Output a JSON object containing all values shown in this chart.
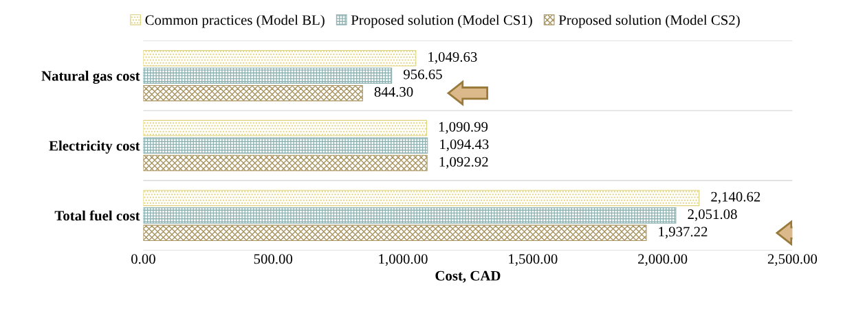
{
  "chart_data": {
    "type": "bar",
    "orientation": "horizontal",
    "xlabel": "Cost, CAD",
    "categories": [
      "Natural gas cost",
      "Electricity cost",
      "Total fuel cost"
    ],
    "series": [
      {
        "name": "Common practices (Model BL)",
        "color": "#e0d27a",
        "values": [
          1049.63,
          1090.99,
          2140.62
        ],
        "value_labels": [
          "1,049.63",
          "1,090.99",
          "2,140.62"
        ]
      },
      {
        "name": "Proposed solution (Model CS1)",
        "color": "#8fb3b3",
        "values": [
          956.65,
          1094.43,
          2051.08
        ],
        "value_labels": [
          "956.65",
          "1,094.43",
          "2,051.08"
        ]
      },
      {
        "name": "Proposed solution (Model CS2)",
        "color": "#a8925e",
        "values": [
          844.3,
          1092.92,
          1937.22
        ],
        "value_labels": [
          "844.30",
          "1,092.92",
          "1,937.22"
        ]
      }
    ],
    "xlim": [
      0,
      2500
    ],
    "xticks": [
      {
        "value": 0,
        "label": "0.00"
      },
      {
        "value": 500,
        "label": "500.00"
      },
      {
        "value": 1000,
        "label": "1,000.00"
      },
      {
        "value": 1500,
        "label": "1,500.00"
      },
      {
        "value": 2000,
        "label": "2,000.00"
      },
      {
        "value": 2500,
        "label": "2,500.00"
      }
    ],
    "grid": false,
    "legend": "top"
  }
}
